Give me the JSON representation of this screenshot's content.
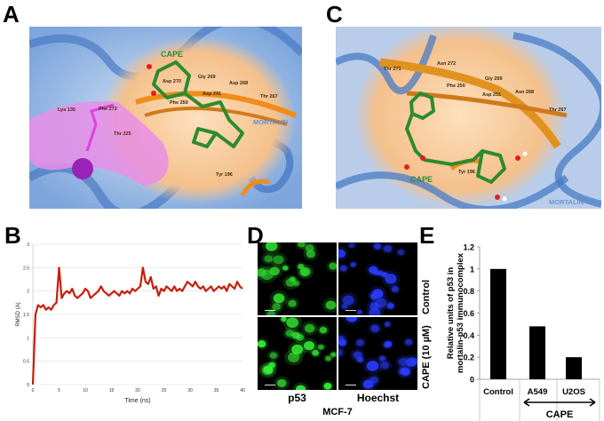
{
  "panels": {
    "A": {
      "label": "A",
      "ligand": "CAPE",
      "protein": "MORTALIN",
      "residues": [
        "Lys 135",
        "Phe 272",
        "Thr 225",
        "Asp 270",
        "Gly 269",
        "Asp 268",
        "Asp 291",
        "Thr 267",
        "Phe 250",
        "Tyr 196"
      ]
    },
    "B": {
      "label": "B"
    },
    "C": {
      "label": "C",
      "ligand": "CAPE",
      "protein": "MORTALIN",
      "residues": [
        "Thr 271",
        "Asn 272",
        "Gly 269",
        "Phe 250",
        "Asp 251",
        "Asn 268",
        "Thr 267",
        "Tyr 196"
      ]
    },
    "D": {
      "label": "D",
      "columns": [
        "p53",
        "Hoechst"
      ],
      "rows": [
        "Control",
        "CAPE (10 µM)"
      ],
      "cell_line": "MCF-7",
      "scale_bar": "20 µm"
    },
    "E": {
      "label": "E",
      "group_label": "CAPE"
    }
  },
  "colors": {
    "rmsd_line": "#c81e0a",
    "bar": "#000000",
    "cape": "#2e8b2e",
    "protein": "#5b8fd6",
    "pocket": "#f5c99a",
    "pink": "#e45bd9"
  },
  "chart_data": [
    {
      "id": "B",
      "type": "line",
      "title": "",
      "xlabel": "Time (ns)",
      "ylabel": "RMSD (A)",
      "xlim": [
        0,
        40
      ],
      "ylim": [
        0,
        3
      ],
      "xticks": [
        "0",
        "5",
        "10",
        "15",
        "20",
        "25",
        "30",
        "35",
        "40"
      ],
      "yticks": [
        "0",
        "0.5",
        "1",
        "1.5",
        "2",
        "2.5",
        "3"
      ],
      "grid": true,
      "x_step": 0.5,
      "series": [
        {
          "name": "RMSD",
          "values": [
            0,
            1.5,
            1.7,
            1.65,
            1.7,
            1.6,
            1.65,
            1.6,
            1.7,
            1.75,
            2.5,
            1.85,
            1.95,
            2.0,
            1.95,
            2.05,
            1.9,
            1.85,
            1.9,
            1.95,
            2.05,
            2.0,
            1.85,
            1.9,
            1.95,
            2.0,
            2.1,
            2.0,
            1.95,
            1.9,
            1.95,
            2.0,
            1.95,
            1.9,
            2.0,
            1.95,
            2.0,
            1.95,
            2.05,
            2.0,
            2.05,
            2.1,
            2.5,
            2.2,
            2.15,
            2.3,
            2.05,
            2.1,
            1.9,
            2.05,
            2.0,
            2.1,
            2.05,
            2.0,
            2.1,
            2.0,
            2.05,
            2.0,
            2.1,
            2.2,
            2.15,
            2.1,
            2.2,
            2.1,
            2.05,
            2.1,
            2.0,
            2.05,
            2.1,
            2.0,
            2.05,
            2.1,
            2.05,
            2.1,
            2.0,
            2.15,
            2.1,
            2.05,
            2.2,
            2.1,
            2.05
          ]
        }
      ]
    },
    {
      "id": "E",
      "type": "bar",
      "title": "",
      "xlabel": "",
      "ylabel": "Relative units of p53 in mortalin-p53 immunocomplex",
      "ylabel_lines": [
        "Relative units of p53 in",
        "mortalin-p53 immunocomplex"
      ],
      "categories": [
        "Control",
        "A549",
        "U2OS"
      ],
      "values": [
        1.0,
        0.48,
        0.2
      ],
      "ylim": [
        0,
        1.2
      ],
      "yticks": [
        "0",
        "0.2",
        "0.4",
        "0.6",
        "0.8",
        "1",
        "1.2"
      ],
      "grid": false
    }
  ]
}
